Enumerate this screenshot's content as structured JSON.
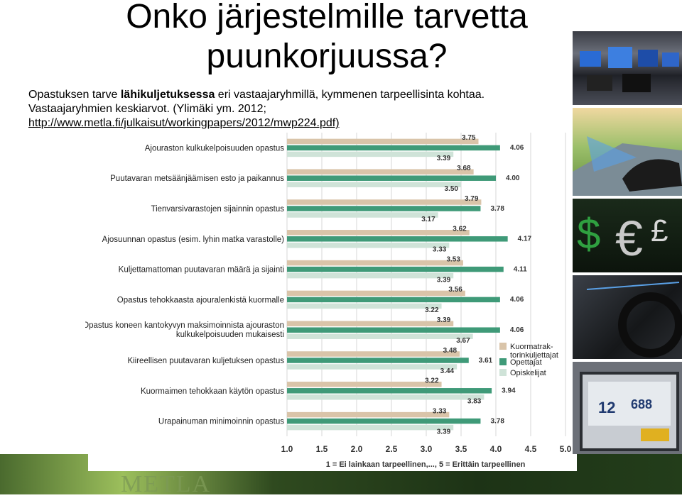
{
  "slide": {
    "title_line1": "Onko järjestelmille tarvetta",
    "title_line2": "puunkorjuussa?",
    "subtitle_pre": "Opastuksen tarve ",
    "subtitle_bold": "lähikuljetuksessa",
    "subtitle_post": " eri vastaajaryhmillä, kymmenen tarpeellisinta kohtaa.",
    "subtitle_line2": "Vastaajaryhmien keskiarvot. (Ylimäki ym. 2012;",
    "subtitle_line3": "http://www.metla.fi/julkaisut/workingpapers/2012/mwp224.pdf)",
    "footer_logo": "METLA"
  },
  "colors": {
    "series1": "#d9c4a9",
    "series2": "#3f9a78",
    "series3": "#cfe3d8"
  },
  "chart_data": {
    "type": "bar",
    "orientation": "horizontal",
    "categories": [
      "Ajouraston kulkukelpoisuuden opastus",
      "Puutavaran metsäänjäämisen esto ja paikannus",
      "Tienvarsivarastojen sijainnin opastus",
      "Ajosuunnan opastus (esim. lyhin matka varastolle)",
      "Kuljettamattoman puutavaran määrä ja sijainti",
      "Opastus tehokkaasta ajouralenkistä kuormalle",
      "Opastus koneen kantokyvyn maksimoinnista ajouraston kulkukelpoisuuden mukaisesti",
      "Kiireellisen puutavaran kuljetuksen opastus",
      "Kuormaimen tehokkaan käytön opastus",
      "Urapainuman minimoinnin opastus"
    ],
    "category_lines": [
      [
        "Ajouraston kulkukelpoisuuden opastus"
      ],
      [
        "Puutavaran metsäänjäämisen esto ja paikannus"
      ],
      [
        "Tienvarsivarastojen sijainnin opastus"
      ],
      [
        "Ajosuunnan opastus (esim. lyhin matka varastolle)"
      ],
      [
        "Kuljettamattoman puutavaran määrä ja sijainti"
      ],
      [
        "Opastus tehokkaasta ajouralenkistä kuormalle"
      ],
      [
        "Opastus koneen kantokyvyn maksimoinnista ajouraston",
        "kulkukelpoisuuden mukaisesti"
      ],
      [
        "Kiireellisen puutavaran kuljetuksen opastus"
      ],
      [
        "Kuormaimen tehokkaan käytön opastus"
      ],
      [
        "Urapainuman minimoinnin opastus"
      ]
    ],
    "series": [
      {
        "name": "Kuormatraktorinkuljettajat",
        "legend_lines": [
          "Kuormatrak-",
          "torinkuljettajat"
        ],
        "values": [
          3.75,
          3.68,
          3.79,
          3.62,
          3.53,
          3.56,
          3.39,
          3.48,
          3.22,
          3.33
        ]
      },
      {
        "name": "Opettajat",
        "legend_lines": [
          "Opettajat"
        ],
        "values": [
          4.06,
          4.0,
          3.78,
          4.17,
          4.11,
          4.06,
          4.06,
          3.61,
          3.94,
          3.78
        ]
      },
      {
        "name": "Opiskelijat",
        "legend_lines": [
          "Opiskelijat"
        ],
        "values": [
          3.39,
          3.5,
          3.17,
          3.33,
          3.39,
          3.22,
          3.67,
          3.44,
          3.83,
          3.39
        ]
      }
    ],
    "data_labels": [
      [
        "3.75",
        "4.06",
        "3.39"
      ],
      [
        "3.68",
        "4.00",
        "3.50"
      ],
      [
        "3.79",
        "3.78",
        "3.17"
      ],
      [
        "3.62",
        "4.17",
        "3.33"
      ],
      [
        "3.53",
        "4.11",
        "3.39"
      ],
      [
        "3.56",
        "4.06",
        "3.22"
      ],
      [
        "3.39",
        "4.06",
        "3.67"
      ],
      [
        "3.48",
        "3.61",
        "3.44"
      ],
      [
        "3.22",
        "3.94",
        "3.83"
      ],
      [
        "3.33",
        "3.78",
        "3.39"
      ]
    ],
    "xticks": [
      "1.0",
      "1.5",
      "2.0",
      "2.5",
      "3.0",
      "3.5",
      "4.0",
      "4.5",
      "5.0"
    ],
    "xlim": [
      1.0,
      5.0
    ],
    "xlabel": "1 = Ei lainkaan tarpeellinen,..., 5 = Erittäin tarpeellinen",
    "legend_position": "right"
  }
}
